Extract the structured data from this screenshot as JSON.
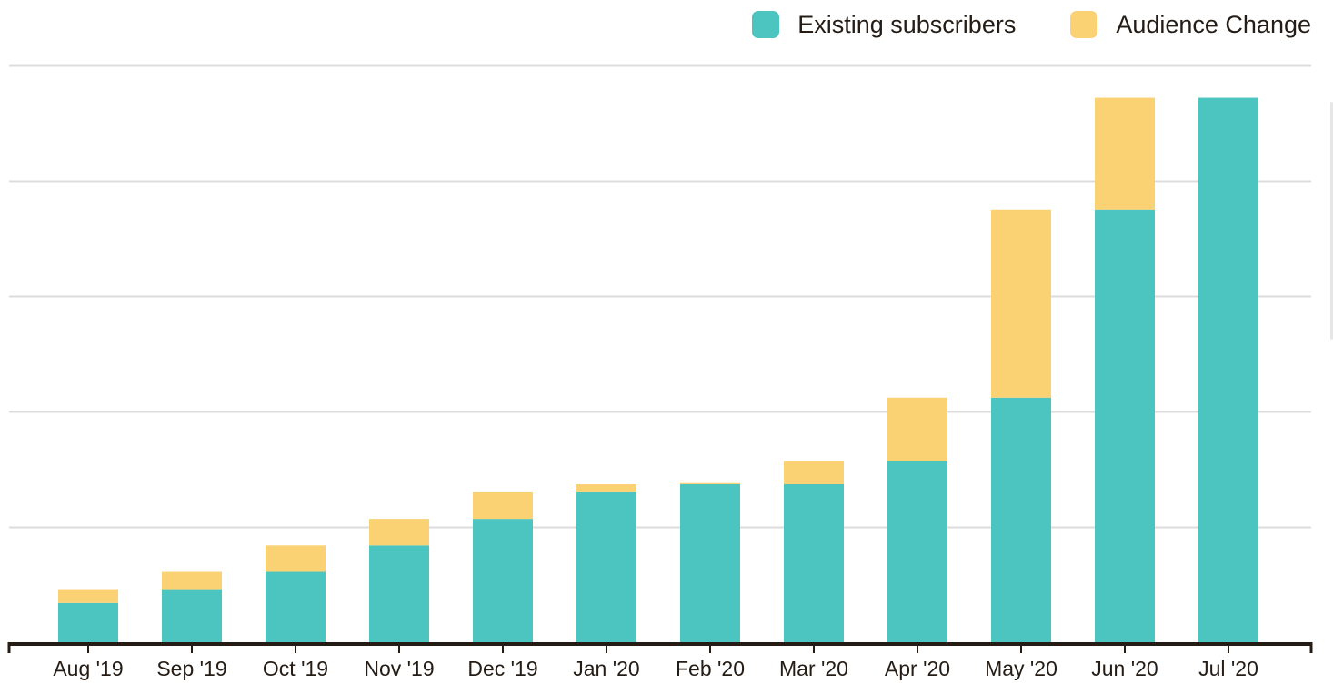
{
  "legend": {
    "items": [
      {
        "label": "Existing subscribers",
        "color": "#4cc4c0"
      },
      {
        "label": "Audience Change",
        "color": "#fad173"
      }
    ]
  },
  "chart_data": {
    "type": "bar",
    "stacked": true,
    "categories": [
      "Aug '19",
      "Sep '19",
      "Oct '19",
      "Nov '19",
      "Dec '19",
      "Jan '20",
      "Feb '20",
      "Mar '20",
      "Apr '20",
      "May '20",
      "Jun '20",
      "Jul '20"
    ],
    "series": [
      {
        "name": "Existing subscribers",
        "color": "#4cc4c0",
        "values": [
          34,
          46,
          61,
          84,
          107,
          130,
          137,
          137,
          157,
          212,
          375,
          472
        ]
      },
      {
        "name": "Audience Change",
        "color": "#fad173",
        "values": [
          12,
          15,
          23,
          23,
          23,
          7,
          1,
          20,
          55,
          163,
          97,
          0
        ]
      }
    ],
    "ylim": [
      0,
      500
    ],
    "grid": true,
    "legend_position": "top-right",
    "title": "",
    "xlabel": "",
    "ylabel": ""
  }
}
